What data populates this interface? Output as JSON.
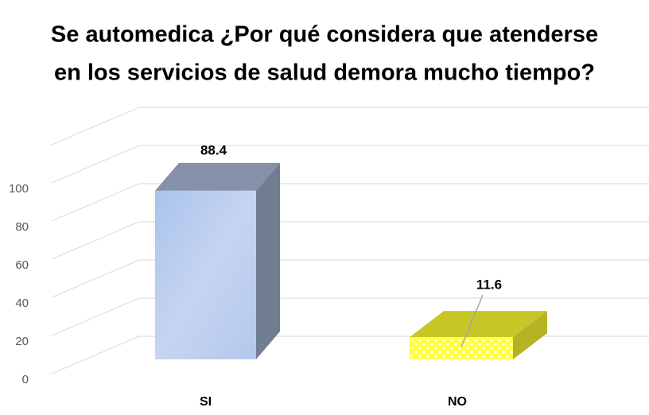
{
  "chart_data": {
    "type": "bar3d",
    "title": [
      "Se automedica ¿Por qué considera que atenderse",
      "en los servicios de salud demora mucho tiempo?"
    ],
    "categories": [
      "SI",
      "NO"
    ],
    "values": [
      88.4,
      11.6
    ],
    "colors": [
      "#b7c9ea",
      "#ffff33"
    ],
    "ylim": [
      0,
      120
    ],
    "yticks": [
      0,
      20,
      40,
      60,
      80,
      100
    ],
    "grid": true
  }
}
